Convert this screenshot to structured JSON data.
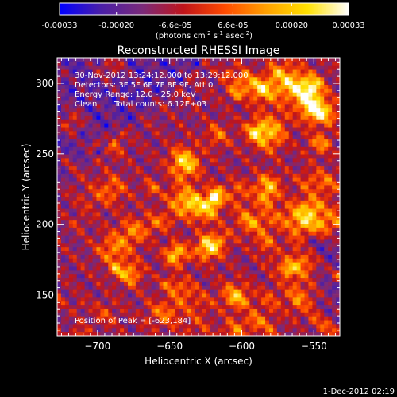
{
  "colorbar": {
    "tick_labels": [
      "-0.00033",
      "-0.00020",
      "-6.6e-05",
      "6.6e-05",
      "0.00020",
      "0.00033"
    ],
    "tick_values": [
      -0.00033,
      -0.0002,
      -6.6e-05,
      6.6e-05,
      0.0002,
      0.00033
    ],
    "range": [
      -0.00033,
      0.00033
    ],
    "units_prefix": "(photons cm",
    "units_exp1": "-2",
    "units_mid": " s",
    "units_exp2": "-1",
    "units_mid2": " asec",
    "units_exp3": "-2",
    "units_suffix": ")"
  },
  "chart_data": {
    "type": "heatmap",
    "title": "Reconstructed RHESSI Image",
    "xlabel": "Heliocentric X (arcsec)",
    "ylabel": "Heliocentric Y (arcsec)",
    "xlim": [
      -728,
      -532
    ],
    "ylim": [
      121,
      318
    ],
    "x_ticks": [
      -700,
      -650,
      -600,
      -550
    ],
    "x_tick_labels": [
      "−700",
      "−650",
      "−600",
      "−550"
    ],
    "y_ticks": [
      150,
      200,
      250,
      300
    ],
    "y_tick_labels": [
      "150",
      "200",
      "250",
      "300"
    ],
    "peak": [
      -623,
      184
    ],
    "colormap": "blue-purple-red-orange-yellow-white",
    "annotations": {
      "time": "30-Nov-2012 13:24:12.000 to 13:29:12.000",
      "detectors": "Detectors: 3F 5F 6F 7F 8F 9F, Att 0",
      "energy": "Energy Range: 12.0 - 25.0 keV",
      "clean_label": "Clean",
      "counts": "Total counts: 6.12E+03",
      "peak_text": "Position of Peak = [-623,184]"
    }
  },
  "footer": {
    "timestamp": "1-Dec-2012 02:19"
  },
  "colors": {
    "cmap": [
      "#0000ff",
      "#4a1fa8",
      "#7a2a7a",
      "#c0141a",
      "#ff4a00",
      "#ffa000",
      "#ffe000",
      "#ffffff"
    ]
  }
}
